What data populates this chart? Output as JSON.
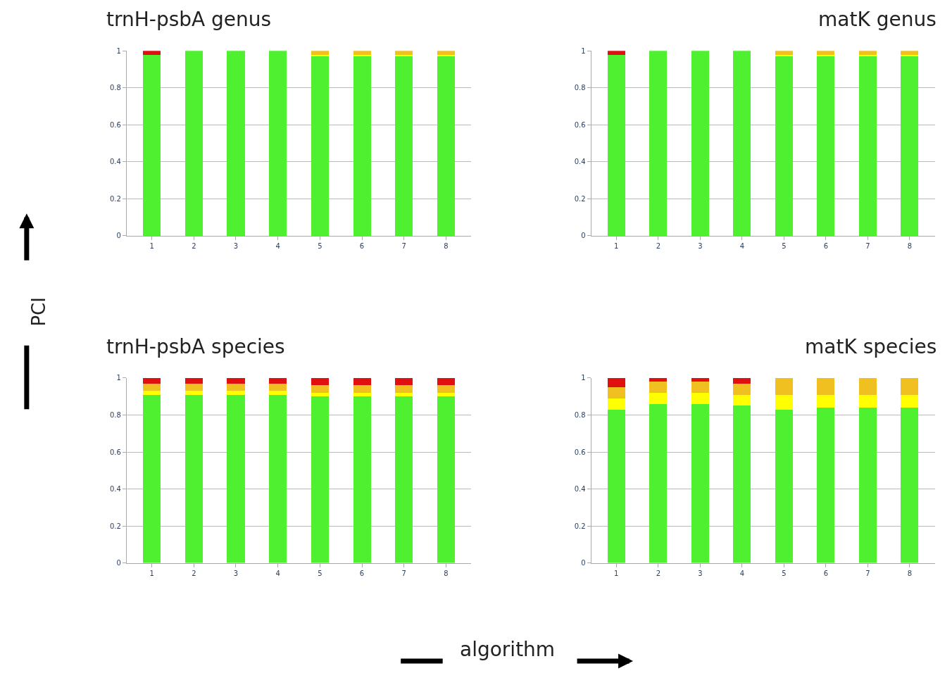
{
  "chart_data": [
    {
      "type": "bar",
      "title": "trnH-psbA genus",
      "stacked": true,
      "categories": [
        "1",
        "2",
        "3",
        "4",
        "5",
        "6",
        "7",
        "8"
      ],
      "ylim": [
        0,
        1
      ],
      "yticks": [
        0,
        0.2,
        0.4,
        0.6,
        0.8,
        1
      ],
      "grid": "y",
      "series": [
        {
          "color": "#4ef030",
          "values": [
            0.98,
            1,
            1,
            1,
            0.97,
            0.97,
            0.97,
            0.97
          ]
        },
        {
          "color": "#ffff00",
          "values": [
            0,
            0,
            0,
            0,
            0.01,
            0.01,
            0.01,
            0.01
          ]
        },
        {
          "color": "#f0c020",
          "values": [
            0,
            0,
            0,
            0,
            0.02,
            0.02,
            0.02,
            0.02
          ]
        },
        {
          "color": "#e01010",
          "values": [
            0.02,
            0,
            0,
            0,
            0,
            0,
            0,
            0
          ]
        }
      ]
    },
    {
      "type": "bar",
      "title": "matK genus",
      "stacked": true,
      "categories": [
        "1",
        "2",
        "3",
        "4",
        "5",
        "6",
        "7",
        "8"
      ],
      "ylim": [
        0,
        1
      ],
      "yticks": [
        0,
        0.2,
        0.4,
        0.6,
        0.8,
        1
      ],
      "grid": "y",
      "series": [
        {
          "color": "#4ef030",
          "values": [
            0.98,
            1,
            1,
            1,
            0.97,
            0.97,
            0.97,
            0.97
          ]
        },
        {
          "color": "#ffff00",
          "values": [
            0,
            0,
            0,
            0,
            0.01,
            0.01,
            0.01,
            0.01
          ]
        },
        {
          "color": "#f0c020",
          "values": [
            0,
            0,
            0,
            0,
            0.02,
            0.02,
            0.02,
            0.02
          ]
        },
        {
          "color": "#e01010",
          "values": [
            0.02,
            0,
            0,
            0,
            0,
            0,
            0,
            0
          ]
        }
      ]
    },
    {
      "type": "bar",
      "title": "trnH-psbA species",
      "ylabel": "PCI",
      "stacked": true,
      "categories": [
        "1",
        "2",
        "3",
        "4",
        "5",
        "6",
        "7",
        "8"
      ],
      "ylim": [
        0,
        1
      ],
      "yticks": [
        0,
        0.2,
        0.4,
        0.6,
        0.8,
        1
      ],
      "grid": "y",
      "series": [
        {
          "color": "#4ef030",
          "values": [
            0.91,
            0.91,
            0.91,
            0.91,
            0.9,
            0.9,
            0.9,
            0.9
          ]
        },
        {
          "color": "#ffff00",
          "values": [
            0.02,
            0.02,
            0.02,
            0.02,
            0.02,
            0.02,
            0.02,
            0.02
          ]
        },
        {
          "color": "#f0c020",
          "values": [
            0.04,
            0.04,
            0.04,
            0.04,
            0.04,
            0.04,
            0.04,
            0.04
          ]
        },
        {
          "color": "#e01010",
          "values": [
            0.03,
            0.03,
            0.03,
            0.03,
            0.04,
            0.04,
            0.04,
            0.04
          ]
        }
      ]
    },
    {
      "type": "bar",
      "title": "matK species",
      "xlabel": "algorithm",
      "stacked": true,
      "categories": [
        "1",
        "2",
        "3",
        "4",
        "5",
        "6",
        "7",
        "8"
      ],
      "ylim": [
        0,
        1
      ],
      "yticks": [
        0,
        0.2,
        0.4,
        0.6,
        0.8,
        1
      ],
      "grid": "y",
      "series": [
        {
          "color": "#4ef030",
          "values": [
            0.83,
            0.86,
            0.86,
            0.85,
            0.83,
            0.84,
            0.84,
            0.84
          ]
        },
        {
          "color": "#ffff00",
          "values": [
            0.06,
            0.06,
            0.06,
            0.06,
            0.08,
            0.07,
            0.07,
            0.07
          ]
        },
        {
          "color": "#f0c020",
          "values": [
            0.06,
            0.06,
            0.06,
            0.06,
            0.09,
            0.09,
            0.09,
            0.09
          ]
        },
        {
          "color": "#e01010",
          "values": [
            0.05,
            0.02,
            0.02,
            0.03,
            0,
            0,
            0,
            0
          ]
        }
      ]
    }
  ]
}
